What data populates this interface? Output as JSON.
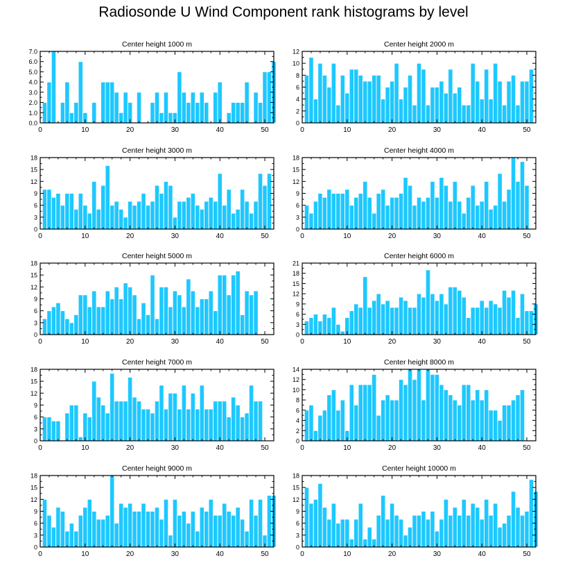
{
  "title": "Radiosonde U Wind Component rank histograms by level",
  "colors": {
    "bar": "#1ec8ff",
    "bar_edge": "#ffffff",
    "axis": "#000000"
  },
  "chart_data": [
    {
      "type": "bar",
      "title": "Center height 1000 m",
      "xlim": [
        0,
        52
      ],
      "ylim": [
        0,
        7
      ],
      "xticks": [
        0,
        10,
        20,
        30,
        40,
        50
      ],
      "yticks": [
        0,
        1,
        2,
        3,
        4,
        5,
        6,
        7
      ],
      "ytick_labels": [
        "0.0",
        "1.0",
        "2.0",
        "3.0",
        "4.0",
        "5.0",
        "6.0",
        "7.0"
      ],
      "values": [
        2,
        4,
        7,
        0,
        2,
        4,
        1,
        2,
        6,
        1,
        0,
        2,
        0,
        4,
        4,
        4,
        3,
        1,
        3,
        2,
        0,
        3,
        0,
        0,
        2,
        3,
        1,
        3,
        1,
        1,
        5,
        3,
        2,
        3,
        2,
        3,
        2,
        0,
        3,
        4,
        0,
        1,
        2,
        2,
        2,
        4,
        0,
        3,
        2,
        5,
        5,
        6
      ]
    },
    {
      "type": "bar",
      "title": "Center height 2000 m",
      "xlim": [
        0,
        52
      ],
      "ylim": [
        0,
        12
      ],
      "xticks": [
        0,
        10,
        20,
        30,
        40,
        50
      ],
      "yticks": [
        0,
        2,
        4,
        6,
        8,
        10,
        12
      ],
      "ytick_labels": [
        "0",
        "2",
        "4",
        "6",
        "8",
        "10",
        "12"
      ],
      "values": [
        8,
        11,
        4,
        10,
        8,
        6,
        10,
        3,
        8,
        5,
        9,
        9,
        8,
        7,
        7,
        8,
        8,
        4,
        6,
        7,
        10,
        4,
        6,
        8,
        3,
        10,
        9,
        3,
        6,
        6,
        7,
        5,
        9,
        5,
        6,
        3,
        3,
        10,
        7,
        4,
        9,
        4,
        10,
        7,
        3,
        7,
        8,
        3,
        7,
        7,
        9
      ]
    },
    {
      "type": "bar",
      "title": "Center height 3000 m",
      "xlim": [
        0,
        52
      ],
      "ylim": [
        0,
        18
      ],
      "xticks": [
        0,
        10,
        20,
        30,
        40,
        50
      ],
      "yticks": [
        0,
        3,
        6,
        9,
        12,
        15,
        18
      ],
      "ytick_labels": [
        "0",
        "3",
        "6",
        "9",
        "12",
        "15",
        "18"
      ],
      "values": [
        10,
        10,
        8,
        9,
        6,
        9,
        9,
        5,
        9,
        6,
        4,
        12,
        5,
        11,
        16,
        6,
        7,
        5,
        3,
        7,
        6,
        7,
        9,
        6,
        7,
        11,
        9,
        12,
        11,
        3,
        7,
        7,
        8,
        9,
        6,
        5,
        7,
        8,
        7,
        14,
        6,
        10,
        4,
        5,
        10,
        7,
        4,
        7,
        14,
        11,
        14
      ]
    },
    {
      "type": "bar",
      "title": "Center height 4000 m",
      "xlim": [
        0,
        52
      ],
      "ylim": [
        0,
        18
      ],
      "xticks": [
        0,
        10,
        20,
        30,
        40,
        50
      ],
      "yticks": [
        0,
        3,
        6,
        9,
        12,
        15,
        18
      ],
      "ytick_labels": [
        "0",
        "3",
        "6",
        "9",
        "12",
        "15",
        "18"
      ],
      "values": [
        6,
        4,
        7,
        9,
        8,
        10,
        9,
        9,
        9,
        10,
        6,
        8,
        9,
        12,
        8,
        4,
        9,
        10,
        6,
        8,
        8,
        9,
        13,
        11,
        6,
        8,
        7,
        8,
        12,
        8,
        13,
        11,
        7,
        12,
        7,
        4,
        8,
        11,
        6,
        7,
        12,
        5,
        6,
        14,
        7,
        10,
        18,
        12,
        17,
        11
      ]
    },
    {
      "type": "bar",
      "title": "Center height 5000 m",
      "xlim": [
        0,
        52
      ],
      "ylim": [
        0,
        18
      ],
      "xticks": [
        0,
        10,
        20,
        30,
        40,
        50
      ],
      "yticks": [
        0,
        3,
        6,
        9,
        12,
        15,
        18
      ],
      "ytick_labels": [
        "0",
        "3",
        "6",
        "9",
        "12",
        "15",
        "18"
      ],
      "values": [
        4,
        6,
        7,
        8,
        6,
        4,
        3,
        5,
        10,
        10,
        7,
        11,
        7,
        7,
        11,
        9,
        12,
        9,
        13,
        12,
        10,
        4,
        8,
        5,
        15,
        4,
        12,
        12,
        7,
        11,
        10,
        7,
        14,
        11,
        7,
        9,
        9,
        11,
        6,
        15,
        15,
        10,
        15,
        16,
        5,
        11,
        10,
        11
      ]
    },
    {
      "type": "bar",
      "title": "Center height 6000 m",
      "xlim": [
        0,
        52
      ],
      "ylim": [
        0,
        21
      ],
      "xticks": [
        0,
        10,
        20,
        30,
        40,
        50
      ],
      "yticks": [
        0,
        3,
        6,
        9,
        12,
        15,
        18,
        21
      ],
      "ytick_labels": [
        "0",
        "3",
        "6",
        "9",
        "12",
        "15",
        "18",
        "21"
      ],
      "values": [
        4,
        5,
        6,
        4,
        6,
        5,
        8,
        3,
        1,
        5,
        7,
        9,
        8,
        17,
        8,
        10,
        12,
        9,
        10,
        8,
        8,
        11,
        10,
        8,
        8,
        12,
        11,
        19,
        12,
        10,
        12,
        9,
        14,
        14,
        13,
        11,
        5,
        8,
        8,
        10,
        8,
        10,
        9,
        8,
        13,
        11,
        13,
        5,
        12,
        7,
        7,
        9
      ]
    },
    {
      "type": "bar",
      "title": "Center height 7000 m",
      "xlim": [
        0,
        52
      ],
      "ylim": [
        0,
        18
      ],
      "xticks": [
        0,
        10,
        20,
        30,
        40,
        50
      ],
      "yticks": [
        0,
        3,
        6,
        9,
        12,
        15,
        18
      ],
      "ytick_labels": [
        "0",
        "3",
        "6",
        "9",
        "12",
        "15",
        "18"
      ],
      "values": [
        6,
        6,
        5,
        5,
        0,
        7,
        9,
        9,
        1,
        7,
        6,
        15,
        11,
        9,
        7,
        17,
        10,
        10,
        10,
        16,
        11,
        10,
        8,
        8,
        7,
        10,
        14,
        8,
        12,
        12,
        8,
        14,
        8,
        12,
        8,
        14,
        8,
        8,
        10,
        10,
        10,
        6,
        11,
        9,
        6,
        7,
        14,
        10,
        10
      ]
    },
    {
      "type": "bar",
      "title": "Center height 8000 m",
      "xlim": [
        0,
        52
      ],
      "ylim": [
        0,
        14
      ],
      "xticks": [
        0,
        10,
        20,
        30,
        40,
        50
      ],
      "yticks": [
        0,
        2,
        4,
        6,
        8,
        10,
        12,
        14
      ],
      "ytick_labels": [
        "0",
        "2",
        "4",
        "6",
        "8",
        "10",
        "12",
        "14"
      ],
      "values": [
        6,
        7,
        2,
        5,
        6,
        9,
        10,
        6,
        8,
        2,
        11,
        7,
        11,
        11,
        11,
        13,
        5,
        8,
        9,
        8,
        8,
        12,
        11,
        14,
        12,
        14,
        8,
        14,
        13,
        13,
        11,
        10,
        9,
        8,
        7,
        11,
        11,
        8,
        10,
        8,
        10,
        6,
        6,
        4,
        7,
        7,
        8,
        9,
        10
      ]
    },
    {
      "type": "bar",
      "title": "Center height 9000 m",
      "xlim": [
        0,
        52
      ],
      "ylim": [
        0,
        18
      ],
      "xticks": [
        0,
        10,
        20,
        30,
        40,
        50
      ],
      "yticks": [
        0,
        3,
        6,
        9,
        12,
        15,
        18
      ],
      "ytick_labels": [
        "0",
        "3",
        "6",
        "9",
        "12",
        "15",
        "18"
      ],
      "values": [
        12,
        8,
        5,
        10,
        9,
        4,
        6,
        4,
        8,
        10,
        12,
        9,
        7,
        7,
        8,
        18,
        6,
        11,
        10,
        11,
        9,
        9,
        11,
        9,
        9,
        10,
        7,
        12,
        3,
        12,
        8,
        9,
        6,
        9,
        4,
        10,
        9,
        12,
        8,
        8,
        11,
        9,
        8,
        10,
        7,
        4,
        12,
        8,
        12,
        3,
        13,
        13
      ]
    },
    {
      "type": "bar",
      "title": "Center height 10000 m",
      "xlim": [
        0,
        52
      ],
      "ylim": [
        0,
        18
      ],
      "xticks": [
        0,
        10,
        20,
        30,
        40,
        50
      ],
      "yticks": [
        0,
        3,
        6,
        9,
        12,
        15,
        18
      ],
      "ytick_labels": [
        "0",
        "3",
        "6",
        "9",
        "12",
        "15",
        "18"
      ],
      "values": [
        15,
        11,
        12,
        16,
        10,
        7,
        11,
        6,
        7,
        7,
        2,
        7,
        11,
        2,
        5,
        2,
        8,
        13,
        7,
        11,
        8,
        7,
        3,
        5,
        8,
        8,
        9,
        7,
        9,
        4,
        7,
        12,
        8,
        10,
        8,
        12,
        8,
        11,
        10,
        7,
        12,
        8,
        11,
        5,
        6,
        8,
        14,
        10,
        8,
        9,
        17,
        14
      ]
    }
  ]
}
